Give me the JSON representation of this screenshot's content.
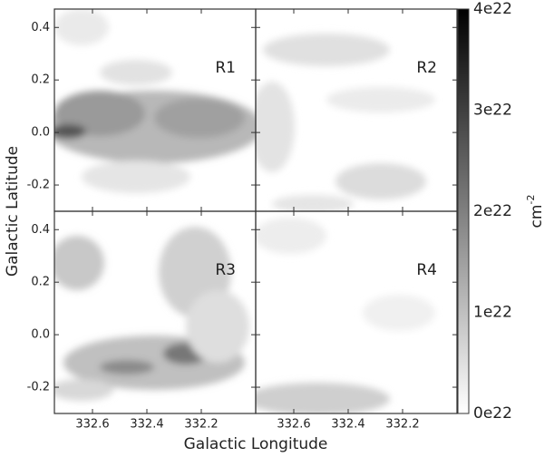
{
  "chart_data": {
    "type": "image-map",
    "xlabel": "Galactic Longitude",
    "ylabel": "Galactic Latitude",
    "panels": [
      "R1",
      "R2",
      "R3",
      "R4"
    ],
    "xlim": [
      332.74,
      332.0
    ],
    "xticks": [
      332.6,
      332.4,
      332.2
    ],
    "ylim": [
      -0.3,
      0.47
    ],
    "yticks": [
      0.4,
      0.2,
      {
        "value": 0,
        "label": "0.0"
      },
      -0.2
    ],
    "colorbar": {
      "lim": [
        0,
        4e+22
      ],
      "colormap": [
        "#ffffff",
        "#000000"
      ],
      "ticks": [
        {
          "value": 0,
          "label": "0e22"
        },
        {
          "value": 1e+22,
          "label": "1e22"
        },
        {
          "value": 2e+22,
          "label": "2e22"
        },
        {
          "value": 3e+22,
          "label": "3e22"
        },
        {
          "value": 4e+22,
          "label": "4e22"
        }
      ],
      "label": "cm",
      "label_sup": "-2"
    }
  }
}
